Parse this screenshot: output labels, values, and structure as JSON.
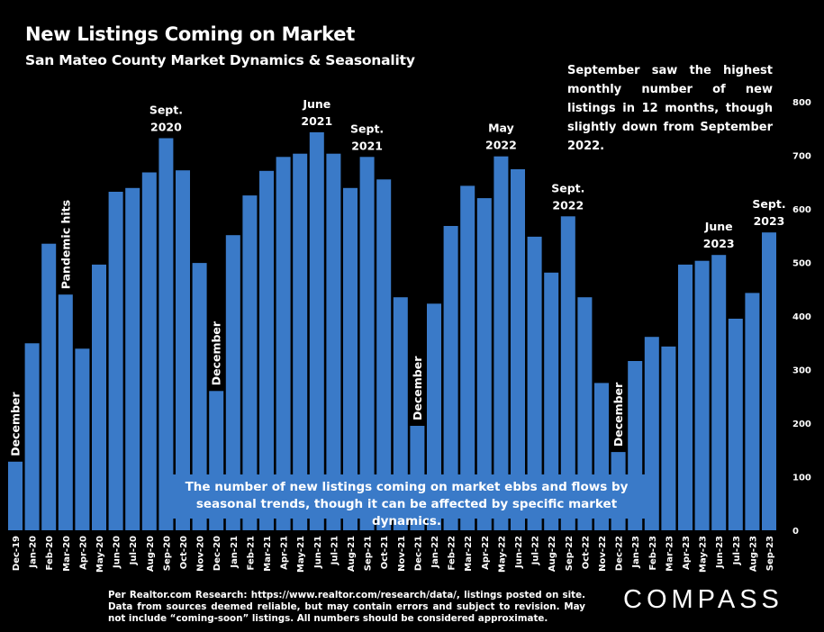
{
  "title": "New Listings Coming on Market",
  "subtitle": "San Mateo County Market Dynamics & Seasonality",
  "note": "September saw the highest monthly number of new listings in 12 months, though slightly down from September 2022.",
  "callout": "The number of new listings coming on market ebbs and flows by seasonal trends, though it can be affected by specific market dynamics.",
  "source": "Per Realtor.com Research: https://www.realtor.com/research/data/, listings posted on site. Data from sources deemed reliable, but may contain errors and subject to revision. May not include “coming-soon” listings. All numbers should be considered approximate.",
  "logo": "COMPASS",
  "colors": {
    "bar": "#3a7ac8",
    "background": "#000000",
    "text": "#ffffff"
  },
  "chart_data": {
    "type": "bar",
    "title": "New Listings Coming on Market",
    "ylim": [
      0,
      800
    ],
    "yticks": [
      0,
      100,
      200,
      300,
      400,
      500,
      600,
      700,
      800
    ],
    "y_axis_side": "right",
    "grid": false,
    "categories": [
      "Dec-19",
      "Jan-20",
      "Feb-20",
      "Mar-20",
      "Apr-20",
      "May-20",
      "Jun-20",
      "Jul-20",
      "Aug-20",
      "Sep-20",
      "Oct-20",
      "Nov-20",
      "Dec-20",
      "Jan-21",
      "Feb-21",
      "Mar-21",
      "Apr-21",
      "May-21",
      "Jun-21",
      "Jul-21",
      "Aug-21",
      "Sep-21",
      "Oct-21",
      "Nov-21",
      "Dec-21",
      "Jan-22",
      "Feb-22",
      "Mar-22",
      "Apr-22",
      "May-22",
      "Jun-22",
      "Jul-22",
      "Aug-22",
      "Sep-22",
      "Oct-22",
      "Nov-22",
      "Dec-22",
      "Jan-23",
      "Feb-23",
      "Mar-23",
      "Apr-23",
      "May-23",
      "Jun-23",
      "Jul-23",
      "Aug-23",
      "Sep-23"
    ],
    "values": [
      128,
      349,
      535,
      440,
      339,
      496,
      632,
      639,
      668,
      732,
      672,
      499,
      260,
      551,
      625,
      671,
      697,
      703,
      743,
      703,
      639,
      697,
      655,
      435,
      195,
      423,
      568,
      643,
      620,
      698,
      674,
      548,
      481,
      586,
      435,
      275,
      146,
      316,
      361,
      343,
      496,
      503,
      514,
      395,
      443,
      556
    ],
    "annotations": [
      {
        "index": 0,
        "text": "December",
        "orientation": "vertical"
      },
      {
        "index": 3,
        "text": "Pandemic hits",
        "orientation": "vertical"
      },
      {
        "index": 9,
        "text": "Sept. 2020",
        "orientation": "horizontal"
      },
      {
        "index": 12,
        "text": "December",
        "orientation": "vertical"
      },
      {
        "index": 18,
        "text": "June 2021",
        "orientation": "horizontal"
      },
      {
        "index": 21,
        "text": "Sept. 2021",
        "orientation": "horizontal"
      },
      {
        "index": 24,
        "text": "December",
        "orientation": "vertical"
      },
      {
        "index": 29,
        "text": "May 2022",
        "orientation": "horizontal"
      },
      {
        "index": 33,
        "text": "Sept. 2022",
        "orientation": "horizontal"
      },
      {
        "index": 36,
        "text": "December",
        "orientation": "vertical"
      },
      {
        "index": 42,
        "text": "June 2023",
        "orientation": "horizontal"
      },
      {
        "index": 45,
        "text": "Sept. 2023",
        "orientation": "horizontal"
      }
    ]
  }
}
